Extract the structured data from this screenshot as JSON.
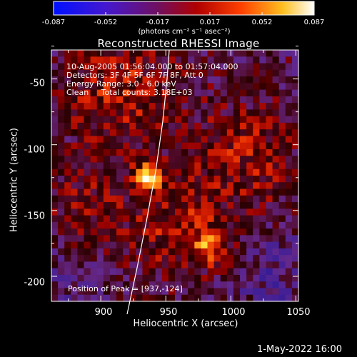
{
  "colorbar": {
    "ticks": [
      "-0.087",
      "-0.052",
      "-0.017",
      "0.017",
      "0.052",
      "0.087"
    ],
    "label": "(photons cm⁻² s⁻¹ asec⁻²)",
    "colors": [
      "#0010ff",
      "#5a20b0",
      "#7a1050",
      "#c00000",
      "#ff5a00",
      "#ffd020",
      "#ffffff"
    ]
  },
  "chart_data": {
    "type": "heatmap",
    "title": "Reconstructed RHESSI Image",
    "xlabel": "Heliocentric X (arcsec)",
    "ylabel": "Heliocentric Y (arcsec)",
    "xlim": [
      862,
      1052
    ],
    "ylim": [
      -219,
      -28
    ],
    "xticks": [
      900,
      950,
      1000,
      1050
    ],
    "yticks": [
      -50,
      -100,
      -150,
      -200
    ],
    "peak": [
      937,
      -124
    ],
    "annotations": [
      "10-Aug-2005 01:56:04.000 to 01:57:04.000",
      "Detectors: 3F 4F 5F 6F 7F 8F, Att 0",
      "Energy Range: 3.0 - 6.0 keV",
      "Clean     Total counts: 3.18E+03"
    ],
    "peak_label": "Position of Peak = [937,-124]"
  },
  "footer": "1-May-2022 16:00"
}
